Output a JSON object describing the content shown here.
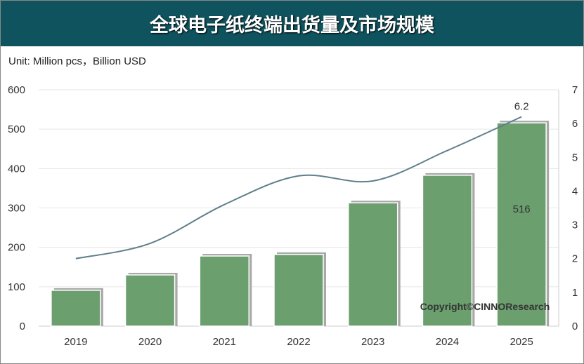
{
  "chart_data": {
    "type": "bar+line",
    "title": "全球电子纸终端出货量及市场规模",
    "subtitle": "Unit: Million pcs，Billion USD",
    "categories": [
      "2019",
      "2020",
      "2021",
      "2022",
      "2023",
      "2024",
      "2025"
    ],
    "series": [
      {
        "type": "bar",
        "axis": "left",
        "values": [
          91,
          130,
          178,
          182,
          313,
          383,
          516
        ],
        "color": "#6b9f6e"
      },
      {
        "type": "line",
        "axis": "right",
        "values": [
          2.0,
          2.45,
          3.6,
          4.45,
          4.3,
          5.2,
          6.2
        ],
        "color": "#5f7f8a"
      }
    ],
    "data_labels": [
      {
        "series": 0,
        "index": 6,
        "text": "516"
      },
      {
        "series": 1,
        "index": 6,
        "text": "6.2"
      }
    ],
    "ylim_left": [
      0,
      600
    ],
    "yticks_left": [
      "0",
      "100",
      "200",
      "300",
      "400",
      "500",
      "600"
    ],
    "ylim_right": [
      0,
      7
    ],
    "yticks_right": [
      "0",
      "1",
      "2",
      "3",
      "4",
      "5",
      "6",
      "7"
    ],
    "grid": true,
    "watermark": "Copyright©CINNOResearch"
  },
  "colors": {
    "header": "#0f535e"
  }
}
